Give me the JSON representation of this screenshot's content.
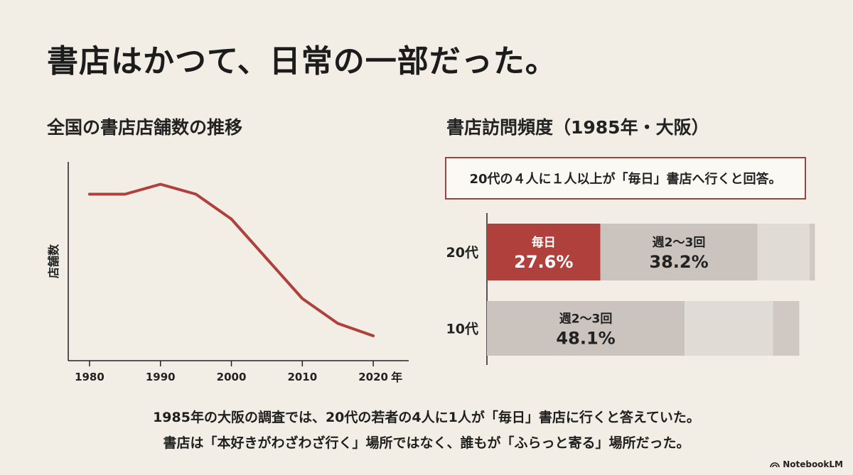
{
  "title": "書店はかつて、日常の一部だった。",
  "left_chart_title": "全国の書店店舗数の推移",
  "right_chart_title": "書店訪問頻度（1985年・大阪）",
  "callout": "20代の４人に１人以上が「毎日」書店へ行くと回答。",
  "footer_lines": [
    "1985年の大阪の調査では、20代の若者の4人に1人が「毎日」書店に行くと答えていた。",
    "書店は「本好きがわざわざ行く」場所ではなく、誰もが「ふらっと寄る」場所だった。"
  ],
  "brand": "NotebookLM",
  "colors": {
    "accent": "#b0403c",
    "line": "#b0403c",
    "bar_gray": "#cbc3bd",
    "bar_light": "#e1dbd6",
    "bar_dark": "#cfc8c3",
    "axis": "#222222"
  },
  "chart_data": [
    {
      "type": "line",
      "title": "全国の書店店舗数の推移",
      "xlabel": "年",
      "ylabel": "店舗数",
      "x": [
        1980,
        1985,
        1990,
        1995,
        2000,
        2005,
        2010,
        2015,
        2020
      ],
      "y": [
        92,
        92,
        96,
        92,
        82,
        66,
        50,
        40,
        35
      ],
      "x_ticks": [
        "1980",
        "1990",
        "2000",
        "2010",
        "2020"
      ],
      "xlim": [
        1977,
        2025
      ],
      "ylim": [
        25,
        105
      ],
      "grid": false
    },
    {
      "type": "bar",
      "orientation": "horizontal",
      "stacked": true,
      "title": "書店訪問頻度（1985年・大阪）",
      "categories": [
        "20代",
        "10代"
      ],
      "rows": [
        {
          "category": "20代",
          "segments": [
            {
              "name": "毎日",
              "value": 27.6,
              "color": "#b0403c",
              "label": "27.6%"
            },
            {
              "name": "週2〜3回",
              "value": 38.2,
              "color": "#cbc3bd",
              "label": "38.2%"
            },
            {
              "name": "",
              "value": 12.7,
              "color": "#e1dbd6",
              "label": ""
            },
            {
              "name": "",
              "value": 1.3,
              "color": "#cfc8c3",
              "label": ""
            }
          ]
        },
        {
          "category": "10代",
          "segments": [
            {
              "name": "週2〜3回",
              "value": 48.1,
              "color": "#cbc3bd",
              "label": "48.1%"
            },
            {
              "name": "",
              "value": 21.5,
              "color": "#e1dbd6",
              "label": ""
            },
            {
              "name": "",
              "value": 6.4,
              "color": "#cfc8c3",
              "label": ""
            }
          ]
        }
      ],
      "xlim": [
        0,
        78
      ]
    }
  ]
}
